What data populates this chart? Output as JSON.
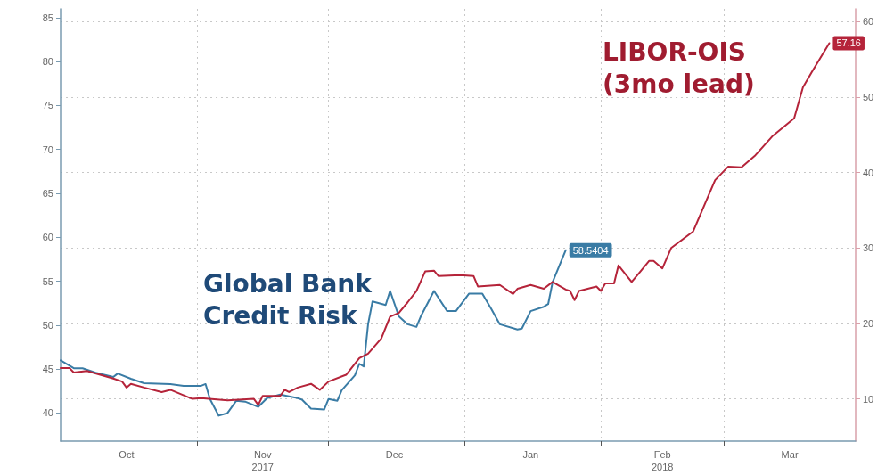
{
  "chart_data": {
    "type": "line",
    "xlim": [
      "2017-10-01",
      "2018-03-31"
    ],
    "xticks": [
      {
        "value": "2017-10-16",
        "label": "Oct"
      },
      {
        "value": "2017-11-01",
        "label": null
      },
      {
        "value": "2017-11-16",
        "label": "Nov\n2017"
      },
      {
        "value": "2017-12-01",
        "label": null
      },
      {
        "value": "2017-12-16",
        "label": "Dec"
      },
      {
        "value": "2018-01-01",
        "label": null
      },
      {
        "value": "2018-01-16",
        "label": "Jan"
      },
      {
        "value": "2018-02-01",
        "label": null
      },
      {
        "value": "2018-02-15",
        "label": "Feb\n2018"
      },
      {
        "value": "2018-03-01",
        "label": null
      },
      {
        "value": "2018-03-16",
        "label": "Mar"
      }
    ],
    "ylim": [
      36.8,
      86
    ],
    "yticks": [
      40,
      45,
      50,
      55,
      60,
      65,
      70,
      75,
      80,
      85
    ],
    "y2lim": [
      4.4,
      61.7
    ],
    "y2ticks": [
      10,
      20,
      30,
      40,
      50,
      60
    ],
    "grid": true,
    "line_style": "solid",
    "annotations": [
      "Global Bank Credit Risk",
      "LIBOR-OIS (3mo lead)"
    ],
    "series": [
      {
        "color": "#3a7ca5",
        "axis": "y",
        "x": [
          "2017-10-01",
          "2017-10-04",
          "2017-10-06",
          "2017-10-09",
          "2017-10-13",
          "2017-10-14",
          "2017-10-17",
          "2017-10-20",
          "2017-10-26",
          "2017-10-29",
          "2017-11-02",
          "2017-11-03",
          "2017-11-04",
          "2017-11-06",
          "2017-11-08",
          "2017-11-10",
          "2017-11-12",
          "2017-11-15",
          "2017-11-17",
          "2017-11-20",
          "2017-11-24",
          "2017-11-25",
          "2017-11-27",
          "2017-11-30",
          "2017-12-01",
          "2017-12-03",
          "2017-12-04",
          "2017-12-07",
          "2017-12-08",
          "2017-12-09",
          "2017-12-10",
          "2017-12-11",
          "2017-12-14",
          "2017-12-15",
          "2017-12-17",
          "2017-12-19",
          "2017-12-21",
          "2017-12-22",
          "2017-12-25",
          "2017-12-28",
          "2017-12-30",
          "2018-01-02",
          "2018-01-05",
          "2018-01-07",
          "2018-01-09",
          "2018-01-13",
          "2018-01-14",
          "2018-01-16",
          "2018-01-19",
          "2018-01-20",
          "2018-01-21",
          "2018-01-24"
        ],
        "values": [
          46.0,
          45.1,
          45.1,
          44.6,
          44.1,
          44.5,
          43.9,
          43.4,
          43.3,
          43.1,
          43.1,
          43.3,
          41.6,
          39.7,
          40.0,
          41.4,
          41.3,
          40.7,
          41.7,
          42.1,
          41.7,
          41.5,
          40.5,
          40.4,
          41.6,
          41.4,
          42.6,
          44.3,
          45.6,
          45.3,
          50.1,
          52.7,
          52.3,
          53.9,
          51.0,
          50.1,
          49.8,
          51.0,
          53.9,
          51.6,
          51.6,
          53.6,
          53.6,
          51.9,
          50.1,
          49.5,
          49.6,
          51.6,
          52.1,
          52.4,
          54.9,
          58.5404
        ],
        "value_labels": [
          null,
          null,
          null,
          null,
          null,
          null,
          null,
          null,
          null,
          null,
          null,
          null,
          null,
          null,
          null,
          null,
          null,
          null,
          null,
          null,
          null,
          null,
          null,
          null,
          null,
          null,
          null,
          null,
          null,
          null,
          null,
          null,
          null,
          null,
          null,
          null,
          null,
          null,
          null,
          null,
          null,
          null,
          null,
          null,
          null,
          null,
          null,
          null,
          null,
          null,
          null,
          "58.5404"
        ]
      },
      {
        "color": "#b5243a",
        "axis": "y2",
        "x": [
          "2017-10-01",
          "2017-10-03",
          "2017-10-04",
          "2017-10-07",
          "2017-10-13",
          "2017-10-15",
          "2017-10-16",
          "2017-10-17",
          "2017-10-20",
          "2017-10-24",
          "2017-10-26",
          "2017-10-31",
          "2017-11-02",
          "2017-11-08",
          "2017-11-14",
          "2017-11-15",
          "2017-11-16",
          "2017-11-20",
          "2017-11-21",
          "2017-11-22",
          "2017-11-24",
          "2017-11-27",
          "2017-11-29",
          "2017-12-01",
          "2017-12-05",
          "2017-12-08",
          "2017-12-10",
          "2017-12-13",
          "2017-12-15",
          "2017-12-17",
          "2017-12-19",
          "2017-12-21",
          "2017-12-23",
          "2017-12-25",
          "2017-12-26",
          "2017-12-31",
          "2018-01-03",
          "2018-01-04",
          "2018-01-09",
          "2018-01-12",
          "2018-01-13",
          "2018-01-16",
          "2018-01-19",
          "2018-01-21",
          "2018-01-24",
          "2018-01-25",
          "2018-01-26",
          "2018-01-27",
          "2018-01-31",
          "2018-02-01",
          "2018-02-02",
          "2018-02-04",
          "2018-02-05",
          "2018-02-08",
          "2018-02-10",
          "2018-02-12",
          "2018-02-13",
          "2018-02-15",
          "2018-02-17",
          "2018-02-22",
          "2018-02-27",
          "2018-03-02",
          "2018-03-05",
          "2018-03-08",
          "2018-03-12",
          "2018-03-17",
          "2018-03-19",
          "2018-03-21",
          "2018-03-25"
        ],
        "values": [
          14.1,
          14.1,
          13.5,
          13.7,
          12.7,
          12.3,
          11.5,
          12.0,
          11.5,
          10.9,
          11.2,
          10.0,
          10.1,
          9.8,
          10.0,
          9.2,
          10.4,
          10.4,
          11.2,
          10.9,
          11.5,
          12.0,
          11.2,
          12.3,
          13.2,
          15.4,
          16.0,
          18.0,
          20.9,
          21.4,
          22.8,
          24.3,
          26.9,
          27.0,
          26.3,
          26.4,
          26.3,
          24.9,
          25.1,
          23.9,
          24.6,
          25.1,
          24.6,
          25.5,
          24.5,
          24.3,
          23.1,
          24.3,
          24.9,
          24.3,
          25.3,
          25.3,
          27.7,
          25.5,
          26.9,
          28.3,
          28.3,
          27.3,
          30.0,
          32.2,
          39.0,
          40.8,
          40.7,
          42.2,
          44.8,
          47.2,
          51.3,
          53.3,
          57.16
        ],
        "value_labels": [
          null,
          null,
          null,
          null,
          null,
          null,
          null,
          null,
          null,
          null,
          null,
          null,
          null,
          null,
          null,
          null,
          null,
          null,
          null,
          null,
          null,
          null,
          null,
          null,
          null,
          null,
          null,
          null,
          null,
          null,
          null,
          null,
          null,
          null,
          null,
          null,
          null,
          null,
          null,
          null,
          null,
          null,
          null,
          null,
          null,
          null,
          null,
          null,
          null,
          null,
          null,
          null,
          null,
          null,
          null,
          null,
          null,
          null,
          null,
          null,
          null,
          null,
          null,
          null,
          null,
          null,
          null,
          null,
          "57.16"
        ]
      }
    ]
  }
}
